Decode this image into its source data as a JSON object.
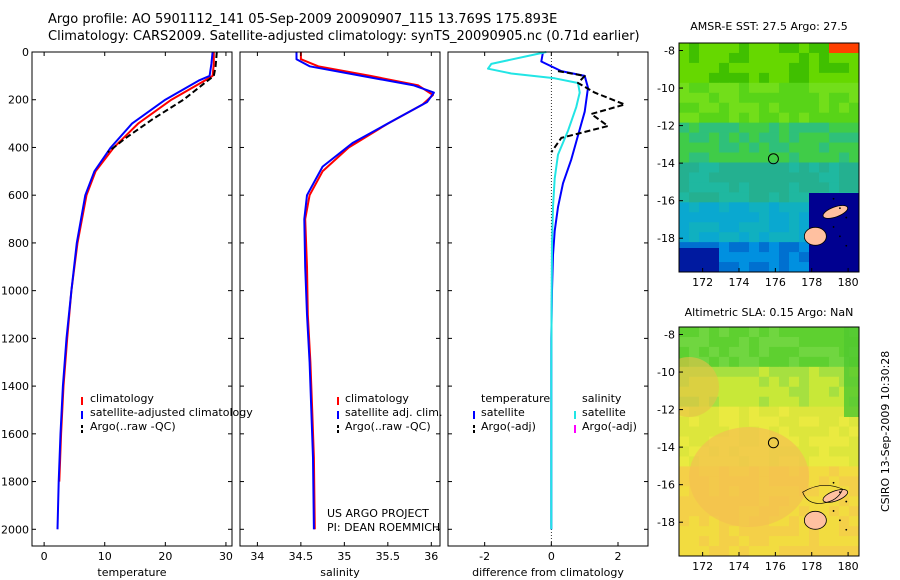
{
  "title": {
    "line1": "Argo profile: AO 5901112_141 05-Sep-2009 20090907_115 13.769S 175.893E",
    "line2": "Climatology: CARS2009. Satellite-adjusted climatology: synTS_20090905.nc (0.71d earlier)"
  },
  "credit": {
    "line1": "US ARGO PROJECT",
    "line2": "PI: DEAN ROEMMICH"
  },
  "side_label": "CSIRO 13-Sep-2009 10:30:28",
  "colors": {
    "climatology": "#ff0000",
    "satellite": "#0000ff",
    "argo": "#000000",
    "satellite_salinity": "#22e5e5",
    "argo_adj_salinity": "#ff00ff"
  },
  "chart_data": [
    {
      "type": "line",
      "xlabel": "temperature",
      "ylabel": "",
      "xlim": [
        -2,
        31
      ],
      "ylim": [
        2070,
        0
      ],
      "xticks": [
        0,
        10,
        20,
        30
      ],
      "yticks": [
        0,
        200,
        400,
        600,
        800,
        1000,
        1200,
        1400,
        1600,
        1800,
        2000
      ],
      "legend": [
        "climatology",
        "satellite-adjusted climatology",
        "Argo(..raw -QC)"
      ],
      "series": [
        {
          "name": "climatology",
          "style": "solid",
          "color": "#ff0000",
          "points": [
            [
              28,
              0
            ],
            [
              28,
              50
            ],
            [
              27.8,
              100
            ],
            [
              26.5,
              120
            ],
            [
              21,
              200
            ],
            [
              15.5,
              300
            ],
            [
              11.5,
              400
            ],
            [
              8.5,
              500
            ],
            [
              7,
              600
            ],
            [
              5.5,
              800
            ],
            [
              4.5,
              1000
            ],
            [
              3.8,
              1200
            ],
            [
              3.2,
              1400
            ],
            [
              2.8,
              1600
            ],
            [
              2.5,
              1800
            ]
          ]
        },
        {
          "name": "satellite-adjusted climatology",
          "style": "solid",
          "color": "#0000ff",
          "points": [
            [
              27.8,
              0
            ],
            [
              27.6,
              50
            ],
            [
              27.3,
              100
            ],
            [
              25.5,
              120
            ],
            [
              20,
              200
            ],
            [
              14.5,
              300
            ],
            [
              11,
              400
            ],
            [
              8.3,
              500
            ],
            [
              6.8,
              600
            ],
            [
              5.4,
              800
            ],
            [
              4.5,
              1000
            ],
            [
              3.7,
              1200
            ],
            [
              3.1,
              1400
            ],
            [
              2.7,
              1600
            ],
            [
              2.4,
              1800
            ],
            [
              2.2,
              2000
            ]
          ]
        },
        {
          "name": "Argo(..raw -QC)",
          "style": "dashed",
          "color": "#000000",
          "points": [
            [
              28.5,
              0
            ],
            [
              28.3,
              60
            ],
            [
              28,
              100
            ],
            [
              26.5,
              130
            ],
            [
              23,
              200
            ],
            [
              18,
              280
            ],
            [
              13.5,
              360
            ],
            [
              10.5,
              420
            ]
          ]
        }
      ]
    },
    {
      "type": "line",
      "xlabel": "salinity",
      "xlim": [
        33.8,
        36.1
      ],
      "ylim": [
        2070,
        0
      ],
      "xticks": [
        34,
        34.5,
        35,
        35.5,
        36
      ],
      "xticklabels": [
        "34",
        "34.5",
        "35",
        "35.5",
        "36"
      ],
      "legend": [
        "climatology",
        "satellite adj. clim.",
        "Argo(..raw -QC)"
      ],
      "series": [
        {
          "name": "climatology",
          "style": "solid",
          "color": "#ff0000",
          "points": [
            [
              34.5,
              0
            ],
            [
              34.5,
              30
            ],
            [
              34.7,
              60
            ],
            [
              35.3,
              100
            ],
            [
              35.85,
              140
            ],
            [
              36.02,
              180
            ],
            [
              35.9,
              220
            ],
            [
              35.5,
              300
            ],
            [
              35.05,
              400
            ],
            [
              34.75,
              500
            ],
            [
              34.6,
              600
            ],
            [
              34.55,
              700
            ],
            [
              34.57,
              900
            ],
            [
              34.58,
              1100
            ],
            [
              34.61,
              1300
            ],
            [
              34.63,
              1500
            ],
            [
              34.65,
              1700
            ],
            [
              34.66,
              2000
            ]
          ]
        },
        {
          "name": "satellite adj. clim.",
          "style": "solid",
          "color": "#0000ff",
          "points": [
            [
              34.45,
              0
            ],
            [
              34.45,
              30
            ],
            [
              34.6,
              60
            ],
            [
              35.2,
              100
            ],
            [
              35.8,
              140
            ],
            [
              36.03,
              170
            ],
            [
              35.95,
              210
            ],
            [
              35.6,
              280
            ],
            [
              35.1,
              380
            ],
            [
              34.75,
              480
            ],
            [
              34.57,
              600
            ],
            [
              34.54,
              700
            ],
            [
              34.55,
              900
            ],
            [
              34.57,
              1100
            ],
            [
              34.6,
              1300
            ],
            [
              34.62,
              1500
            ],
            [
              34.64,
              1700
            ],
            [
              34.65,
              2000
            ]
          ]
        }
      ]
    },
    {
      "type": "line",
      "xlabel": "difference from climatology",
      "xlim": [
        -3.1,
        2.9
      ],
      "ylim": [
        2070,
        0
      ],
      "xticks": [
        -2,
        0,
        2
      ],
      "legend_temperature": [
        "temperature",
        "satellite",
        "Argo(-adj)"
      ],
      "legend_salinity": [
        "salinity",
        "satellite",
        "Argo(-adj)"
      ],
      "series": [
        {
          "name": "temperature satellite",
          "style": "solid",
          "color": "#0000ff",
          "points": [
            [
              -0.25,
              0
            ],
            [
              -0.3,
              40
            ],
            [
              0.3,
              80
            ],
            [
              1,
              100
            ],
            [
              1.1,
              150
            ],
            [
              1,
              250
            ],
            [
              0.8,
              350
            ],
            [
              0.6,
              450
            ],
            [
              0.35,
              550
            ],
            [
              0.2,
              650
            ],
            [
              0.1,
              750
            ],
            [
              0.05,
              850
            ],
            [
              0.02,
              1000
            ],
            [
              0,
              1200
            ],
            [
              0,
              1600
            ],
            [
              0,
              2000
            ]
          ]
        },
        {
          "name": "salinity satellite",
          "style": "solid",
          "color": "#22e5e5",
          "points": [
            [
              -0.15,
              0
            ],
            [
              -1.8,
              50
            ],
            [
              -1.9,
              70
            ],
            [
              -1.2,
              90
            ],
            [
              0.1,
              110
            ],
            [
              0.8,
              130
            ],
            [
              0.85,
              170
            ],
            [
              0.75,
              230
            ],
            [
              0.5,
              330
            ],
            [
              0.2,
              430
            ],
            [
              0.1,
              530
            ],
            [
              0.05,
              650
            ],
            [
              0.02,
              800
            ],
            [
              0.01,
              1000
            ],
            [
              0,
              1300
            ],
            [
              0,
              1600
            ],
            [
              0,
              2000
            ]
          ]
        },
        {
          "name": "temperature Argo(-adj)",
          "style": "dashed",
          "color": "#000000",
          "points": [
            [
              0.2,
              80
            ],
            [
              1,
              100
            ],
            [
              0.8,
              130
            ],
            [
              1.3,
              170
            ],
            [
              2.2,
              220
            ],
            [
              1.2,
              260
            ],
            [
              1.7,
              310
            ],
            [
              0.3,
              360
            ],
            [
              0,
              420
            ]
          ]
        }
      ]
    },
    {
      "type": "heatmap",
      "title": "AMSR-E SST: 27.5 Argo: 27.5",
      "xlim": [
        170.7,
        180.6
      ],
      "ylim": [
        -19.8,
        -7.6
      ],
      "xticks": [
        172,
        174,
        176,
        178,
        180
      ],
      "yticks": [
        -8,
        -10,
        -12,
        -14,
        -16,
        -18
      ],
      "argo_position": [
        175.893,
        -13.769
      ]
    },
    {
      "type": "heatmap",
      "title": "Altimetric SLA: 0.15 Argo: NaN",
      "xlim": [
        170.7,
        180.6
      ],
      "ylim": [
        -19.8,
        -7.6
      ],
      "xticks": [
        172,
        174,
        176,
        178,
        180
      ],
      "yticks": [
        -8,
        -10,
        -12,
        -14,
        -16,
        -18
      ],
      "argo_position": [
        175.893,
        -13.769
      ]
    }
  ]
}
